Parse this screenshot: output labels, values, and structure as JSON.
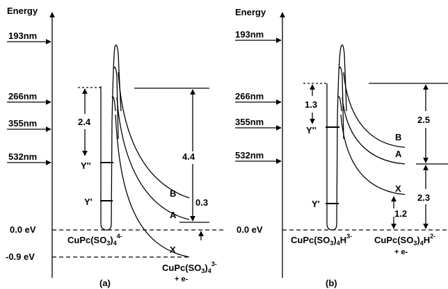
{
  "panel_a": {
    "axis_label": "Energy",
    "photon_labels": [
      "193nm",
      "266nm",
      "355nm",
      "532nm"
    ],
    "energy_zero": "0.0 eV",
    "energy_neg": "-0.9 eV",
    "level_upper": "Y''",
    "level_lower": "Y'",
    "value_left": "2.4",
    "value_right": "4.4",
    "value_small": "0.3",
    "curve_labels": [
      "B",
      "A",
      "X"
    ],
    "species_label": "CuPc(SO3)4 4-",
    "product_label_1": "CuPc(SO3)4 3-",
    "product_label_2": "+ e-",
    "panel_label": "(a)"
  },
  "panel_b": {
    "axis_label": "Energy",
    "photon_labels": [
      "193nm",
      "266nm",
      "355nm",
      "532nm"
    ],
    "energy_zero": "0.0 eV",
    "level_upper": "Y''",
    "level_lower": "Y'",
    "value_left": "1.3",
    "value_right_top": "2.5",
    "value_right_bottom": "2.3",
    "value_small": "1.2",
    "curve_labels": [
      "B",
      "A",
      "X"
    ],
    "species_label": "CuPc(SO3)4H 3-",
    "product_label_1": "CuPc(SO3)4H 2-",
    "product_label_2": "+ e-",
    "panel_label": "(b)"
  }
}
